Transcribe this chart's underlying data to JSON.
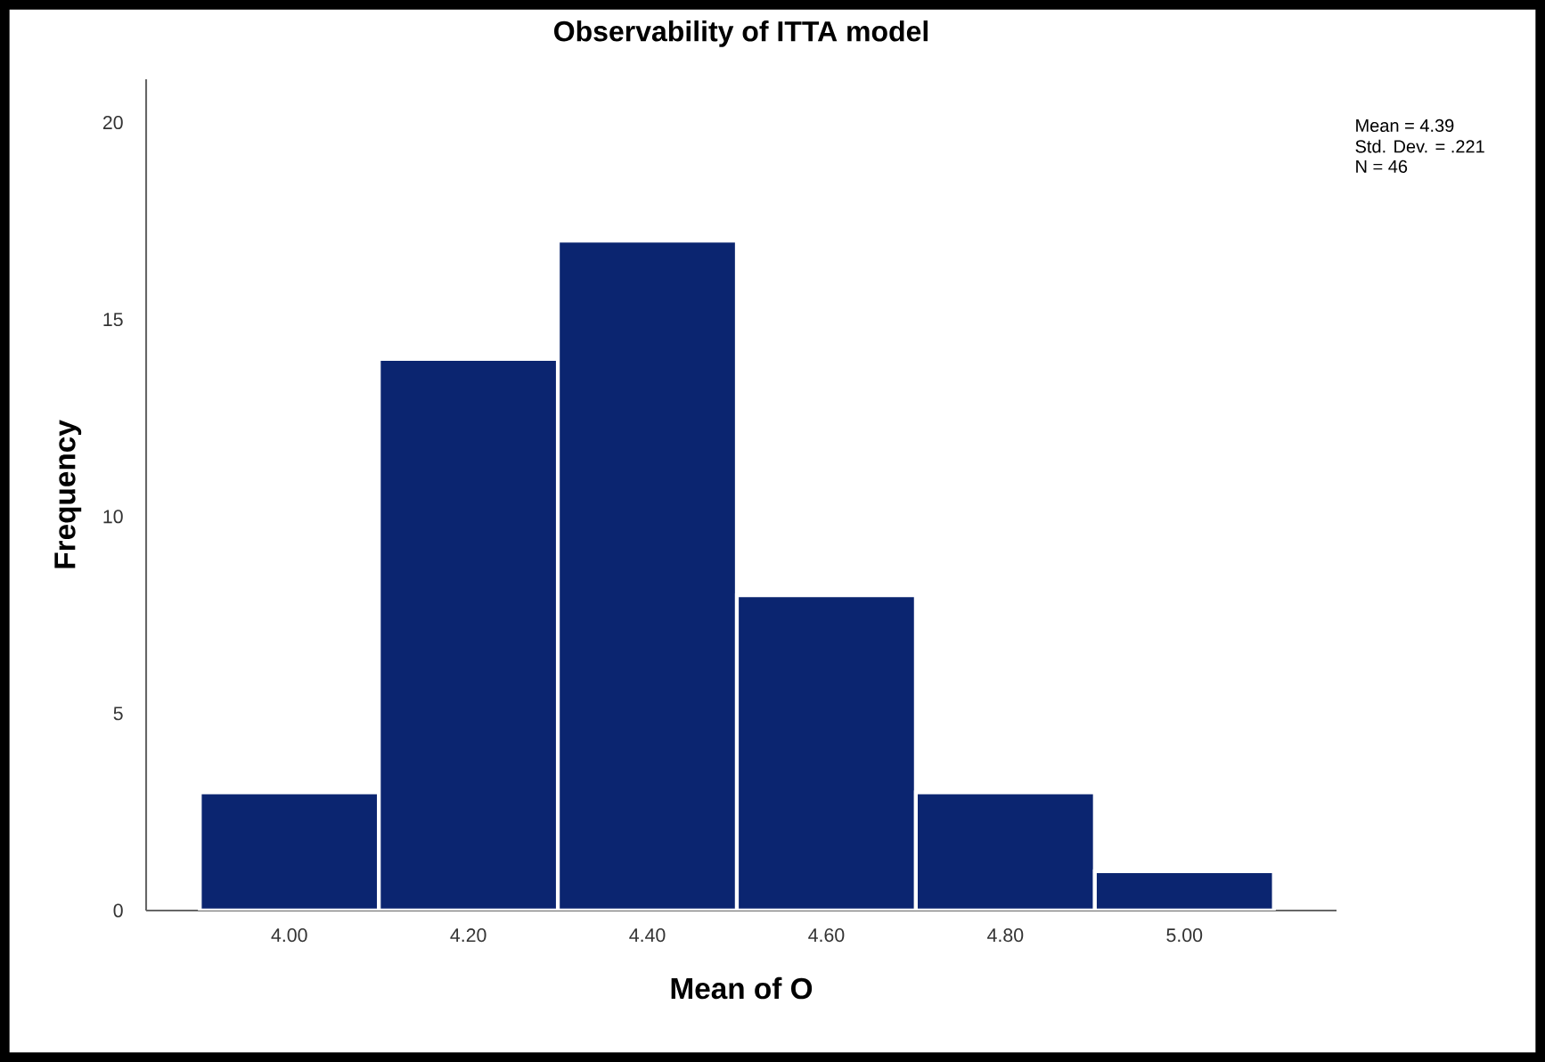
{
  "chart_data": {
    "type": "histogram",
    "title": "Observability of ITTA model",
    "xlabel": "Mean of O",
    "ylabel": "Frequency",
    "bins": [
      3.9,
      4.1,
      4.3,
      4.5,
      4.7,
      4.9,
      5.1
    ],
    "values": [
      3,
      14,
      17,
      8,
      3,
      1
    ],
    "color": "#0b2570",
    "xlim": [
      3.84,
      5.17
    ],
    "ylim": [
      0,
      21.1
    ],
    "xticks": [
      {
        "value": 4,
        "label": "4.00"
      },
      {
        "value": 4.2,
        "label": "4.20"
      },
      {
        "value": 4.4,
        "label": "4.40"
      },
      {
        "value": 4.6,
        "label": "4.60"
      },
      {
        "value": 4.8,
        "label": "4.80"
      },
      {
        "value": 5,
        "label": "5.00"
      }
    ],
    "yticks": [
      0,
      5,
      10,
      15,
      20
    ],
    "annotations": [
      "Mean = 4.39",
      "Std. Dev. = .221",
      "N = 46"
    ]
  }
}
